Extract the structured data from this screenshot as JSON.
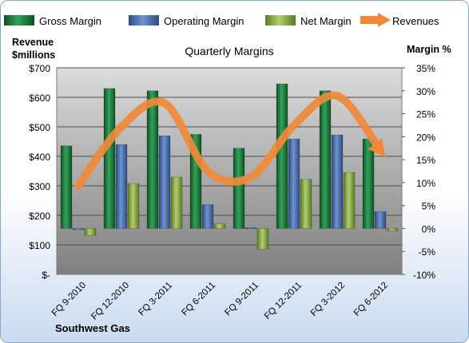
{
  "chart_data": {
    "type": "bar",
    "title": "Quarterly Margins",
    "company": "Southwest Gas",
    "left_axis_label": [
      "Revenue",
      "$millions"
    ],
    "right_axis_label": "Margin %",
    "categories": [
      "FQ 9-2010",
      "FQ 12-2010",
      "FQ 3-2011",
      "FQ 6-2011",
      "FQ 9-2011",
      "FQ 12-2011",
      "FQ 3-2012",
      "FQ 6-2012"
    ],
    "left_ticks": [
      "$-",
      "$100",
      "$200",
      "$300",
      "$400",
      "$500",
      "$600",
      "$700"
    ],
    "right_ticks": [
      "-10%",
      "-5%",
      "0%",
      "5%",
      "10%",
      "15%",
      "20%",
      "25%",
      "30%",
      "35%"
    ],
    "revenue_ylim": [
      0,
      700
    ],
    "margin_ylim": [
      -10,
      35
    ],
    "grid": true,
    "legend_position": "top",
    "series": [
      {
        "name": "Gross Margin",
        "axis": "right",
        "color": "#1e7a3a",
        "values": [
          18.0,
          30.5,
          30.0,
          20.5,
          17.5,
          31.5,
          30.0,
          19.5
        ]
      },
      {
        "name": "Operating Margin",
        "axis": "right",
        "color": "#4a6fae",
        "values": [
          -0.2,
          18.3,
          20.2,
          5.2,
          0.2,
          19.5,
          20.4,
          3.7
        ]
      },
      {
        "name": "Net Margin",
        "axis": "right",
        "color": "#8aab4a",
        "values": [
          -1.5,
          9.8,
          11.2,
          1.0,
          -4.5,
          10.7,
          12.2,
          -0.5
        ]
      },
      {
        "name": "Revenues",
        "axis": "left",
        "color": "#ef8a3a",
        "values": [
          300,
          500,
          580,
          350,
          330,
          505,
          605,
          420
        ]
      }
    ]
  }
}
